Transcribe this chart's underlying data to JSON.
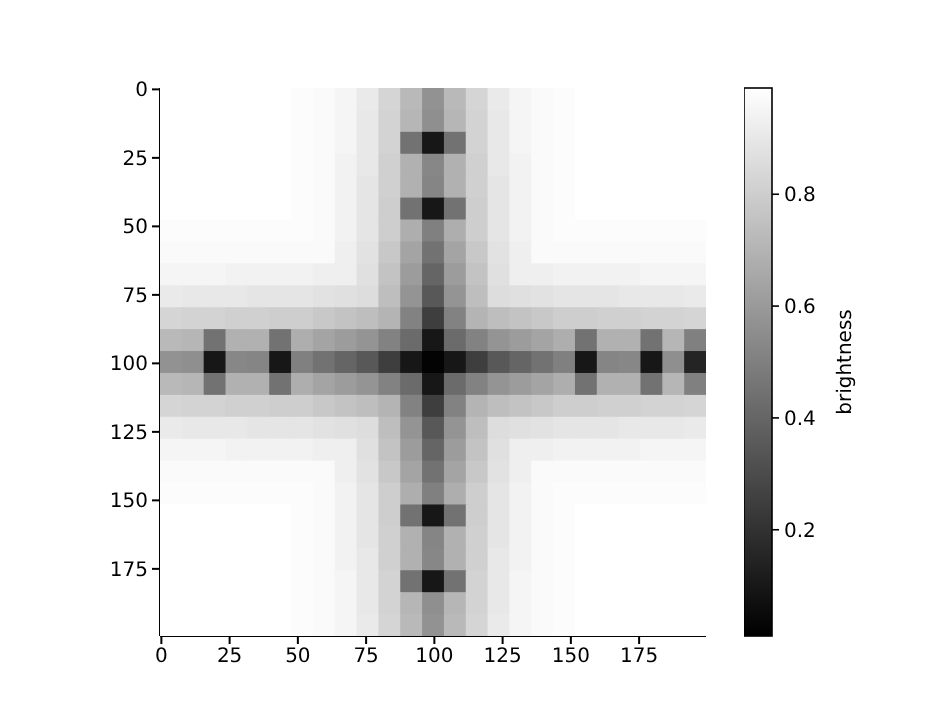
{
  "chart_data": {
    "type": "heatmap",
    "clabel": "brightness",
    "xlim": [
      -0.5,
      199.5
    ],
    "ylim": [
      199.5,
      -0.5
    ],
    "xticks": [
      0,
      25,
      50,
      75,
      100,
      125,
      150,
      175
    ],
    "yticks": [
      0,
      25,
      50,
      75,
      100,
      125,
      150,
      175
    ],
    "clim": [
      0.01,
      0.99
    ],
    "cticks": [
      0.2,
      0.4,
      0.6,
      0.8
    ],
    "cells": [
      [
        0.99,
        0.99,
        0.99,
        0.99,
        0.99,
        0.99,
        0.98,
        0.97,
        0.95,
        0.91,
        0.83,
        0.72,
        0.57,
        0.72,
        0.83,
        0.91,
        0.95,
        0.97,
        0.98,
        0.99,
        0.99,
        0.99,
        0.99,
        0.99,
        0.99
      ],
      [
        0.99,
        0.99,
        0.99,
        0.99,
        0.99,
        0.99,
        0.98,
        0.97,
        0.95,
        0.9,
        0.82,
        0.71,
        0.56,
        0.71,
        0.82,
        0.9,
        0.95,
        0.97,
        0.98,
        0.99,
        0.99,
        0.99,
        0.99,
        0.99,
        0.99
      ],
      [
        0.99,
        0.99,
        0.99,
        0.99,
        0.99,
        0.99,
        0.98,
        0.97,
        0.95,
        0.9,
        0.82,
        0.45,
        0.1,
        0.45,
        0.82,
        0.9,
        0.95,
        0.97,
        0.98,
        0.99,
        0.99,
        0.99,
        0.99,
        0.99,
        0.99
      ],
      [
        0.99,
        0.99,
        0.99,
        0.99,
        0.99,
        0.99,
        0.98,
        0.97,
        0.94,
        0.9,
        0.81,
        0.69,
        0.53,
        0.69,
        0.81,
        0.9,
        0.94,
        0.97,
        0.98,
        0.99,
        0.99,
        0.99,
        0.99,
        0.99,
        0.99
      ],
      [
        0.99,
        0.99,
        0.99,
        0.99,
        0.99,
        0.99,
        0.98,
        0.97,
        0.94,
        0.89,
        0.81,
        0.69,
        0.52,
        0.69,
        0.81,
        0.89,
        0.94,
        0.97,
        0.98,
        0.99,
        0.99,
        0.99,
        0.99,
        0.99,
        0.99
      ],
      [
        0.99,
        0.99,
        0.99,
        0.99,
        0.99,
        0.99,
        0.98,
        0.97,
        0.94,
        0.89,
        0.8,
        0.45,
        0.1,
        0.45,
        0.8,
        0.89,
        0.94,
        0.97,
        0.98,
        0.99,
        0.99,
        0.99,
        0.99,
        0.99,
        0.99
      ],
      [
        0.98,
        0.98,
        0.98,
        0.98,
        0.98,
        0.98,
        0.98,
        0.97,
        0.94,
        0.89,
        0.8,
        0.68,
        0.5,
        0.68,
        0.8,
        0.89,
        0.94,
        0.97,
        0.98,
        0.98,
        0.98,
        0.98,
        0.98,
        0.98,
        0.98
      ],
      [
        0.97,
        0.97,
        0.97,
        0.97,
        0.97,
        0.97,
        0.97,
        0.97,
        0.93,
        0.88,
        0.78,
        0.64,
        0.45,
        0.64,
        0.78,
        0.88,
        0.93,
        0.97,
        0.97,
        0.97,
        0.97,
        0.97,
        0.97,
        0.97,
        0.97
      ],
      [
        0.95,
        0.95,
        0.95,
        0.94,
        0.94,
        0.94,
        0.94,
        0.93,
        0.93,
        0.87,
        0.76,
        0.61,
        0.4,
        0.61,
        0.76,
        0.87,
        0.93,
        0.93,
        0.94,
        0.94,
        0.94,
        0.94,
        0.95,
        0.95,
        0.95
      ],
      [
        0.91,
        0.9,
        0.9,
        0.9,
        0.89,
        0.89,
        0.89,
        0.88,
        0.87,
        0.86,
        0.74,
        0.58,
        0.35,
        0.58,
        0.74,
        0.86,
        0.87,
        0.88,
        0.89,
        0.89,
        0.89,
        0.9,
        0.9,
        0.9,
        0.91
      ],
      [
        0.83,
        0.82,
        0.82,
        0.81,
        0.81,
        0.8,
        0.8,
        0.78,
        0.76,
        0.74,
        0.7,
        0.51,
        0.25,
        0.51,
        0.7,
        0.74,
        0.76,
        0.78,
        0.8,
        0.8,
        0.81,
        0.81,
        0.82,
        0.82,
        0.83
      ],
      [
        0.72,
        0.71,
        0.45,
        0.69,
        0.69,
        0.45,
        0.68,
        0.64,
        0.61,
        0.58,
        0.51,
        0.42,
        0.1,
        0.42,
        0.51,
        0.58,
        0.61,
        0.64,
        0.68,
        0.45,
        0.69,
        0.69,
        0.45,
        0.71,
        0.5
      ],
      [
        0.57,
        0.56,
        0.1,
        0.53,
        0.52,
        0.1,
        0.5,
        0.45,
        0.4,
        0.35,
        0.25,
        0.1,
        0.02,
        0.1,
        0.25,
        0.35,
        0.4,
        0.45,
        0.5,
        0.1,
        0.52,
        0.53,
        0.1,
        0.56,
        0.15
      ],
      [
        0.72,
        0.71,
        0.45,
        0.69,
        0.69,
        0.45,
        0.68,
        0.64,
        0.61,
        0.58,
        0.51,
        0.42,
        0.1,
        0.42,
        0.51,
        0.58,
        0.61,
        0.64,
        0.68,
        0.45,
        0.69,
        0.69,
        0.45,
        0.71,
        0.5
      ],
      [
        0.83,
        0.82,
        0.82,
        0.81,
        0.81,
        0.8,
        0.8,
        0.78,
        0.76,
        0.74,
        0.7,
        0.51,
        0.25,
        0.51,
        0.7,
        0.74,
        0.76,
        0.78,
        0.8,
        0.8,
        0.81,
        0.81,
        0.82,
        0.82,
        0.83
      ],
      [
        0.91,
        0.9,
        0.9,
        0.9,
        0.89,
        0.89,
        0.89,
        0.88,
        0.87,
        0.86,
        0.74,
        0.58,
        0.35,
        0.58,
        0.74,
        0.86,
        0.87,
        0.88,
        0.89,
        0.89,
        0.89,
        0.9,
        0.9,
        0.9,
        0.91
      ],
      [
        0.95,
        0.95,
        0.95,
        0.94,
        0.94,
        0.94,
        0.94,
        0.93,
        0.93,
        0.87,
        0.76,
        0.61,
        0.4,
        0.61,
        0.76,
        0.87,
        0.93,
        0.93,
        0.94,
        0.94,
        0.94,
        0.94,
        0.95,
        0.95,
        0.95
      ],
      [
        0.97,
        0.97,
        0.97,
        0.97,
        0.97,
        0.97,
        0.97,
        0.97,
        0.93,
        0.88,
        0.78,
        0.64,
        0.45,
        0.64,
        0.78,
        0.88,
        0.93,
        0.97,
        0.97,
        0.97,
        0.97,
        0.97,
        0.97,
        0.97,
        0.97
      ],
      [
        0.98,
        0.98,
        0.98,
        0.98,
        0.98,
        0.98,
        0.98,
        0.97,
        0.94,
        0.89,
        0.8,
        0.68,
        0.5,
        0.68,
        0.8,
        0.89,
        0.94,
        0.97,
        0.98,
        0.98,
        0.98,
        0.98,
        0.98,
        0.98,
        0.98
      ],
      [
        0.99,
        0.99,
        0.99,
        0.99,
        0.99,
        0.99,
        0.98,
        0.97,
        0.94,
        0.89,
        0.8,
        0.45,
        0.1,
        0.45,
        0.8,
        0.89,
        0.94,
        0.97,
        0.98,
        0.99,
        0.99,
        0.99,
        0.99,
        0.99,
        0.99
      ],
      [
        0.99,
        0.99,
        0.99,
        0.99,
        0.99,
        0.99,
        0.98,
        0.97,
        0.94,
        0.89,
        0.81,
        0.69,
        0.52,
        0.69,
        0.81,
        0.89,
        0.94,
        0.97,
        0.98,
        0.99,
        0.99,
        0.99,
        0.99,
        0.99,
        0.99
      ],
      [
        0.99,
        0.99,
        0.99,
        0.99,
        0.99,
        0.99,
        0.98,
        0.97,
        0.94,
        0.9,
        0.81,
        0.69,
        0.53,
        0.69,
        0.81,
        0.9,
        0.94,
        0.97,
        0.98,
        0.99,
        0.99,
        0.99,
        0.99,
        0.99,
        0.99
      ],
      [
        0.99,
        0.99,
        0.99,
        0.99,
        0.99,
        0.99,
        0.98,
        0.97,
        0.95,
        0.9,
        0.82,
        0.45,
        0.1,
        0.45,
        0.82,
        0.9,
        0.95,
        0.97,
        0.98,
        0.99,
        0.99,
        0.99,
        0.99,
        0.99,
        0.99
      ],
      [
        0.99,
        0.99,
        0.99,
        0.99,
        0.99,
        0.99,
        0.98,
        0.97,
        0.95,
        0.9,
        0.82,
        0.71,
        0.56,
        0.71,
        0.82,
        0.9,
        0.95,
        0.97,
        0.98,
        0.99,
        0.99,
        0.99,
        0.99,
        0.99,
        0.99
      ],
      [
        0.99,
        0.99,
        0.99,
        0.99,
        0.99,
        0.99,
        0.98,
        0.97,
        0.95,
        0.91,
        0.83,
        0.72,
        0.57,
        0.72,
        0.83,
        0.91,
        0.95,
        0.97,
        0.98,
        0.99,
        0.99,
        0.99,
        0.99,
        0.99,
        0.99
      ]
    ]
  }
}
